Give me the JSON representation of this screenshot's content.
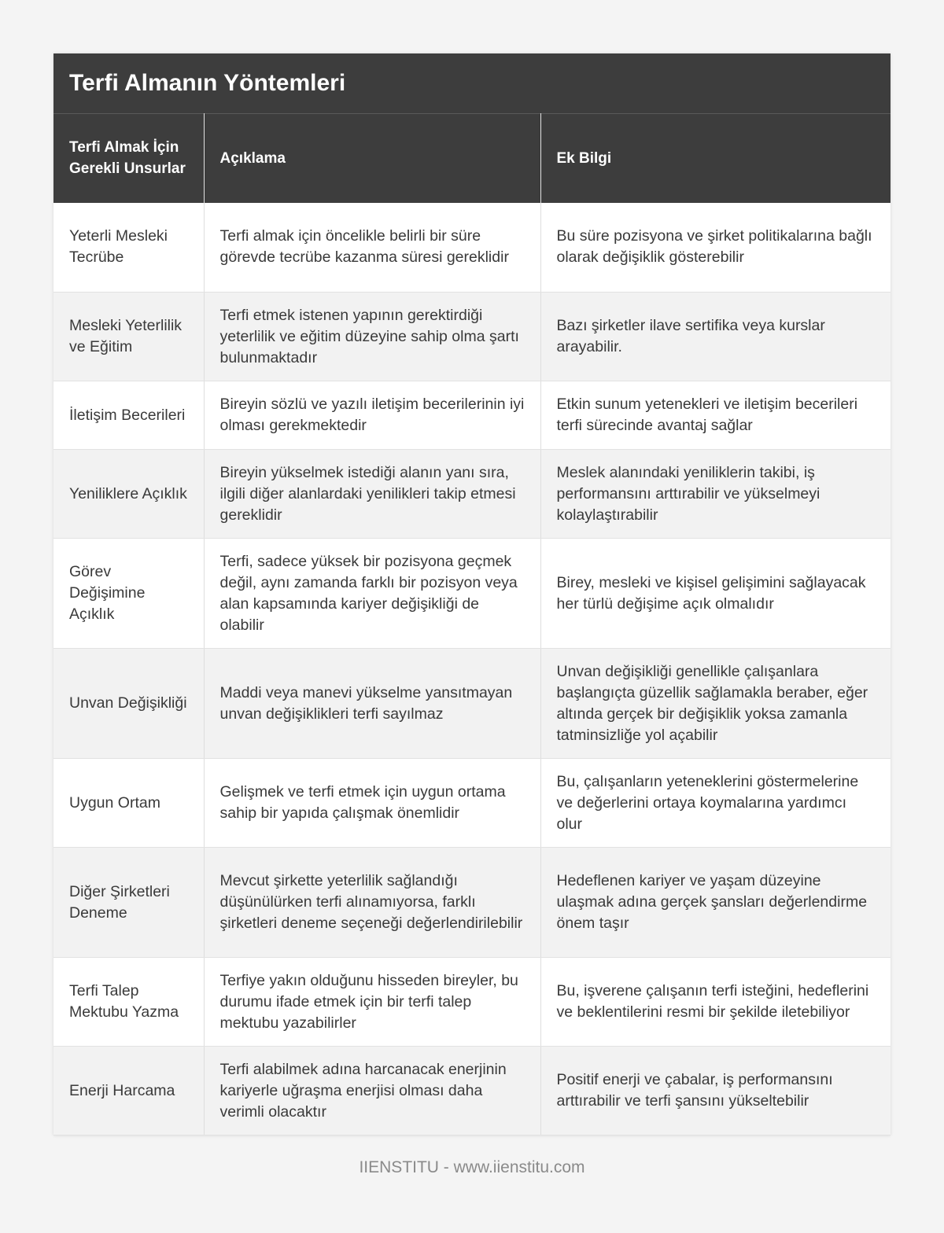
{
  "title": "Terfi Almanın Yöntemleri",
  "columns": [
    "Terfi Almak İçin Gerekli Unsurlar",
    "Açıklama",
    "Ek Bilgi"
  ],
  "rows": [
    [
      "Yeterli Mesleki Tecrübe",
      "Terfi almak için öncelikle belirli bir süre görevde tecrübe kazanma süresi gereklidir",
      "Bu süre pozisyona ve şirket politikalarına bağlı olarak değişiklik gösterebilir"
    ],
    [
      "Mesleki Yeterlilik ve Eğitim",
      "Terfi etmek istenen yapının gerektirdiği yeterlilik ve eğitim düzeyine sahip olma şartı bulunmaktadır",
      "Bazı şirketler ilave sertifika veya kurslar arayabilir."
    ],
    [
      "İletişim Becerileri",
      "Bireyin sözlü ve yazılı iletişim becerilerinin iyi olması gerekmektedir",
      "Etkin sunum yetenekleri ve iletişim becerileri terfi sürecinde avantaj sağlar"
    ],
    [
      "Yeniliklere Açıklık",
      "Bireyin yükselmek istediği alanın yanı sıra, ilgili diğer alanlardaki yenilikleri takip etmesi gereklidir",
      "Meslek alanındaki yeniliklerin takibi, iş performansını arttırabilir ve yükselmeyi kolaylaştırabilir"
    ],
    [
      "Görev Değişimine Açıklık",
      "Terfi, sadece yüksek bir pozisyona geçmek değil, aynı zamanda farklı bir pozisyon veya alan kapsamında kariyer değişikliği de olabilir",
      "Birey, mesleki ve kişisel gelişimini sağlayacak her türlü değişime açık olmalıdır"
    ],
    [
      "Unvan Değişikliği",
      "Maddi veya manevi yükselme yansıtmayan unvan değişiklikleri terfi sayılmaz",
      "Unvan değişikliği genellikle çalışanlara başlangıçta güzellik sağlamakla beraber, eğer altında gerçek bir değişiklik yoksa zamanla tatminsizliğe yol açabilir"
    ],
    [
      "Uygun Ortam",
      "Gelişmek ve terfi etmek için uygun ortama sahip bir yapıda çalışmak önemlidir",
      "Bu, çalışanların yeteneklerini göstermelerine ve değerlerini ortaya koymalarına yardımcı olur"
    ],
    [
      "Diğer Şirketleri Deneme",
      "Mevcut şirkette yeterlilik sağlandığı düşünülürken terfi alınamıyorsa, farklı şirketleri deneme seçeneği değerlendirilebilir",
      "Hedeflenen kariyer ve yaşam düzeyine ulaşmak adına gerçek şansları değerlendirme önem taşır"
    ],
    [
      "Terfi Talep Mektubu Yazma",
      "Terfiye yakın olduğunu hisseden bireyler, bu durumu ifade etmek için bir terfi talep mektubu yazabilirler",
      "Bu, işverene çalışanın terfi isteğini, hedeflerini ve beklentilerini resmi bir şekilde iletebiliyor"
    ],
    [
      "Enerji Harcama",
      "Terfi alabilmek adına harcanacak enerjinin kariyerle uğraşma enerjisi olması daha verimli olacaktır",
      "Positif enerji ve çabalar, iş performansını arttırabilir ve terfi şansını yükseltebilir"
    ]
  ],
  "footer": "IIENSTITU - www.iienstitu.com"
}
